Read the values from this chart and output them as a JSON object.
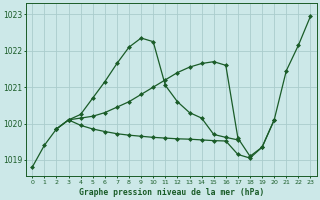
{
  "title": "Graphe pression niveau de la mer (hPa)",
  "hours": [
    0,
    1,
    2,
    3,
    4,
    5,
    6,
    7,
    8,
    9,
    10,
    11,
    12,
    13,
    14,
    15,
    16,
    17,
    18,
    19,
    20,
    21,
    22,
    23
  ],
  "ylim": [
    1018.55,
    1023.3
  ],
  "yticks": [
    1019,
    1020,
    1021,
    1022,
    1023
  ],
  "bg_color": "#cce8e8",
  "grid_color": "#aacccc",
  "line_color": "#1a5c28",
  "series1_x": [
    0,
    1,
    2,
    3,
    4,
    5,
    6,
    7,
    8,
    9,
    10,
    11,
    12,
    13,
    14,
    15,
    16,
    17
  ],
  "series1_y": [
    1018.8,
    1019.4,
    1019.85,
    1020.1,
    1020.25,
    1020.7,
    1021.15,
    1021.65,
    1022.1,
    1022.35,
    1022.25,
    1021.05,
    1020.6,
    1020.3,
    1020.15,
    1019.7,
    1019.62,
    1019.55
  ],
  "series2_x": [
    2,
    3,
    4,
    5,
    6,
    7,
    8,
    9,
    10,
    11,
    12,
    13,
    14,
    15,
    16,
    17,
    18,
    19,
    20,
    21,
    22,
    23
  ],
  "series2_y": [
    1019.85,
    1020.1,
    1020.15,
    1020.2,
    1020.3,
    1020.45,
    1020.6,
    1020.8,
    1021.0,
    1021.2,
    1021.4,
    1021.55,
    1021.65,
    1021.7,
    1021.6,
    1019.6,
    1019.1,
    1019.35,
    1020.1,
    1021.45,
    1022.15,
    1022.95
  ],
  "series3_x": [
    2,
    3,
    4,
    5,
    6,
    7,
    8,
    9,
    10,
    11,
    12,
    13,
    14,
    15,
    16,
    17,
    18,
    19,
    20
  ],
  "series3_y": [
    1019.85,
    1020.1,
    1019.95,
    1019.85,
    1019.78,
    1019.72,
    1019.68,
    1019.65,
    1019.62,
    1019.6,
    1019.58,
    1019.57,
    1019.55,
    1019.53,
    1019.52,
    1019.15,
    1019.05,
    1019.35,
    1020.1
  ],
  "markersize": 2.5,
  "linewidth": 0.9
}
